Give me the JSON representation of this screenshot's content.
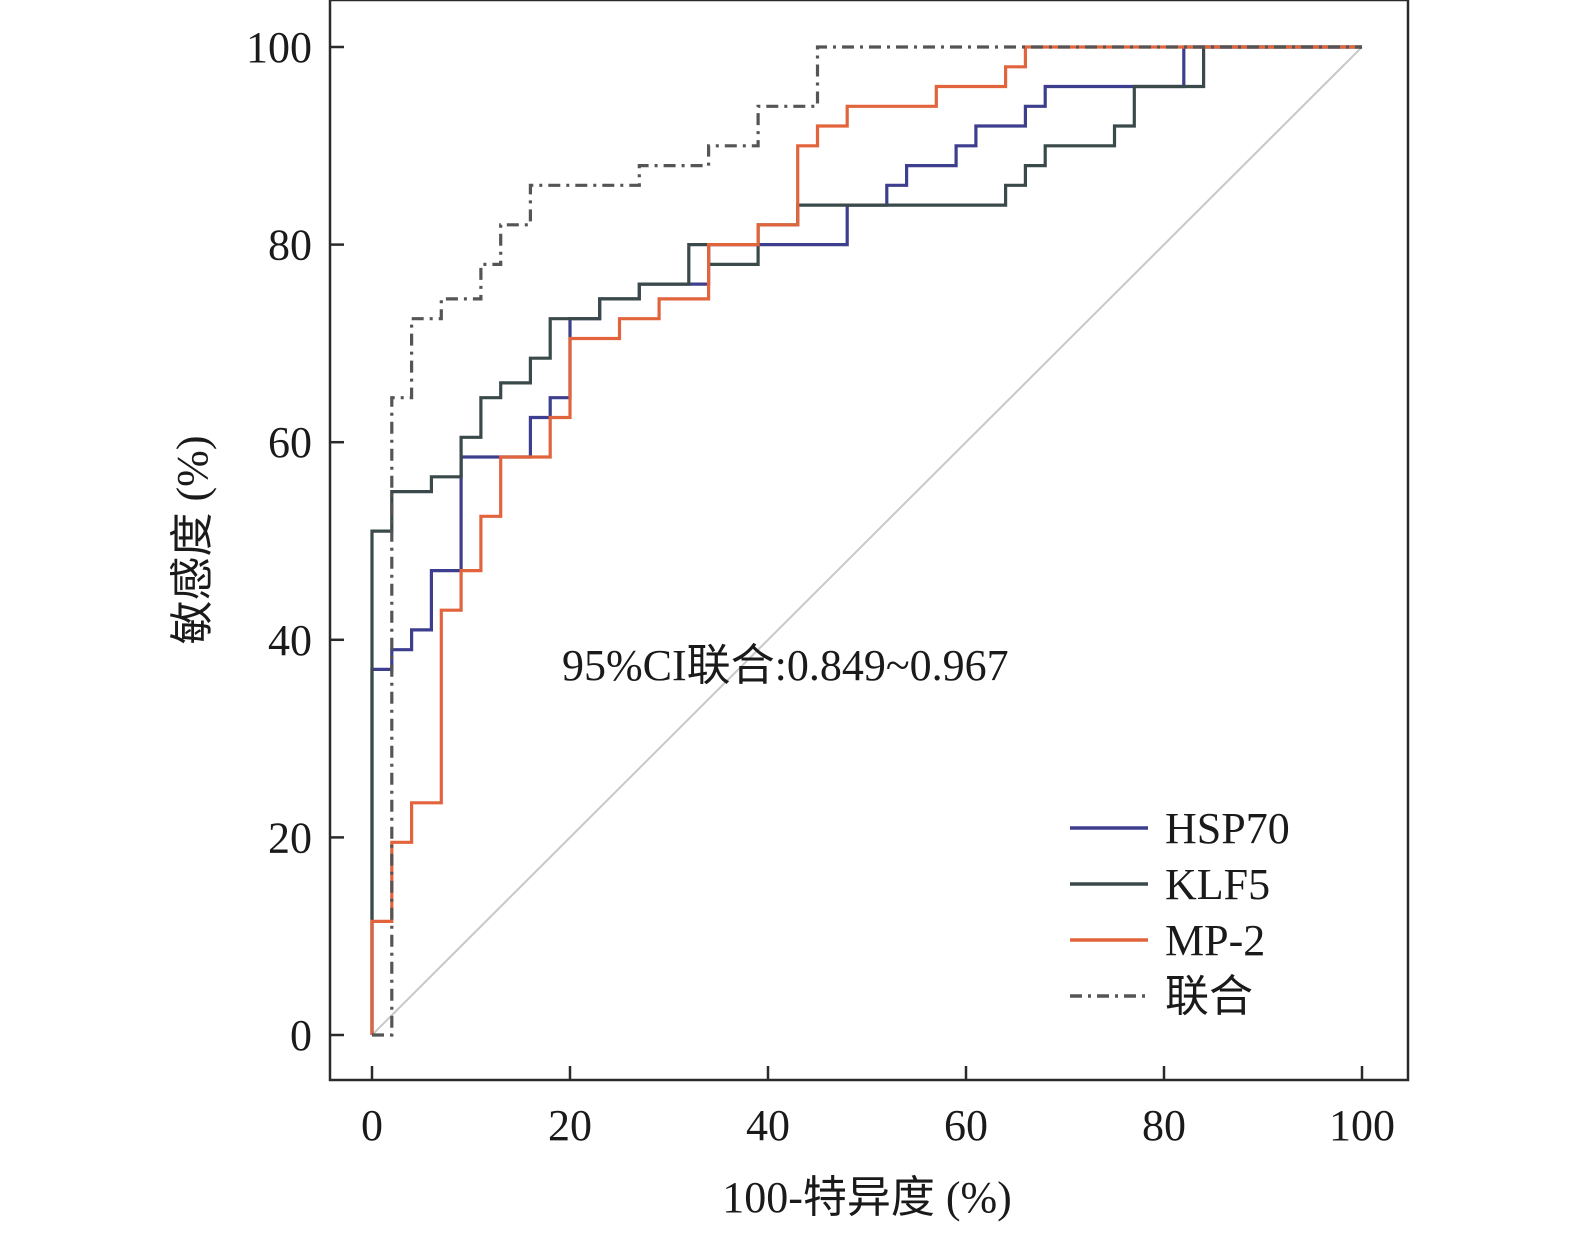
{
  "chart_data": {
    "type": "line",
    "title": "",
    "xlabel": "100-特异度 (%)",
    "ylabel": "敏感度 (%)",
    "xlim": [
      0,
      100
    ],
    "ylim": [
      0,
      100
    ],
    "xticks": [
      0,
      20,
      40,
      60,
      80,
      100
    ],
    "yticks": [
      0,
      20,
      40,
      60,
      80,
      100
    ],
    "grid": false,
    "legend_position": "bottom-right",
    "annotation": "95%CI联合:0.849~0.967",
    "series": [
      {
        "name": "HSP70",
        "color": "#3e3e8e",
        "dash": "solid",
        "x": [
          0,
          0,
          2,
          2,
          4,
          4,
          6,
          6,
          9,
          9,
          14,
          14,
          16,
          16,
          18,
          18,
          20,
          20,
          23,
          23,
          27,
          27,
          30,
          30,
          34,
          34,
          39,
          39,
          43,
          43,
          48,
          48,
          52,
          52,
          54,
          54,
          57,
          57,
          59,
          59,
          61,
          61,
          64,
          64,
          66,
          66,
          68,
          68,
          77,
          77,
          82,
          82,
          100
        ],
        "y": [
          0,
          37,
          37,
          39,
          39,
          41,
          41,
          47,
          47,
          58.5,
          58.5,
          58.5,
          58.5,
          62.5,
          62.5,
          64.5,
          64.5,
          72.5,
          72.5,
          74.5,
          74.5,
          76,
          76,
          76,
          76,
          80,
          80,
          80,
          80,
          80,
          80,
          84,
          84,
          86,
          86,
          88,
          88,
          88,
          88,
          90,
          90,
          92,
          92,
          92,
          92,
          94,
          94,
          96,
          96,
          96,
          96,
          100,
          100
        ]
      },
      {
        "name": "KLF5",
        "color": "#3a4a4a",
        "dash": "solid",
        "x": [
          0,
          0,
          2,
          2,
          6,
          6,
          9,
          9,
          11,
          11,
          13,
          13,
          16,
          16,
          18,
          18,
          23,
          23,
          27,
          27,
          32,
          32,
          34,
          34,
          39,
          39,
          43,
          43,
          52,
          52,
          64,
          64,
          66,
          66,
          68,
          68,
          75,
          75,
          77,
          77,
          84,
          84,
          100
        ],
        "y": [
          0,
          51,
          51,
          55,
          55,
          56.5,
          56.5,
          60.5,
          60.5,
          64.5,
          64.5,
          66,
          66,
          68.5,
          68.5,
          72.5,
          72.5,
          74.5,
          74.5,
          76,
          76,
          80,
          80,
          78,
          78,
          82,
          82,
          84,
          84,
          84,
          84,
          86,
          86,
          88,
          88,
          90,
          90,
          92,
          92,
          96,
          96,
          100,
          100
        ]
      },
      {
        "name": "MP-2",
        "color": "#e2643c",
        "dash": "solid",
        "x": [
          0,
          0,
          2,
          2,
          4,
          4,
          7,
          7,
          9,
          9,
          11,
          11,
          13,
          13,
          18,
          18,
          20,
          20,
          25,
          25,
          29,
          29,
          34,
          34,
          39,
          39,
          43,
          43,
          45,
          45,
          48,
          48,
          57,
          57,
          63,
          63,
          64,
          64,
          66,
          66,
          100
        ],
        "y": [
          0,
          11.5,
          11.5,
          19.5,
          19.5,
          23.5,
          23.5,
          43,
          43,
          47,
          47,
          52.5,
          52.5,
          58.5,
          58.5,
          62.5,
          62.5,
          70.5,
          70.5,
          72.5,
          72.5,
          74.5,
          74.5,
          80,
          80,
          82,
          82,
          90,
          90,
          92,
          92,
          94,
          94,
          96,
          96,
          96,
          96,
          98,
          98,
          100,
          100
        ]
      },
      {
        "name": "联合",
        "color": "#555555",
        "dash": "12,6,3,6",
        "x": [
          0,
          0,
          2,
          2,
          4,
          4,
          7,
          7,
          11,
          11,
          13,
          13,
          16,
          16,
          27,
          27,
          34,
          34,
          39,
          39,
          45,
          45,
          100
        ],
        "y": [
          0,
          0,
          0,
          64.5,
          64.5,
          72.5,
          72.5,
          74.5,
          74.5,
          78,
          78,
          82,
          82,
          86,
          86,
          88,
          88,
          90,
          90,
          94,
          94,
          100,
          100
        ]
      }
    ],
    "reference_line": {
      "x": [
        0,
        100
      ],
      "y": [
        0,
        100
      ],
      "color": "#c8c8c8"
    }
  }
}
